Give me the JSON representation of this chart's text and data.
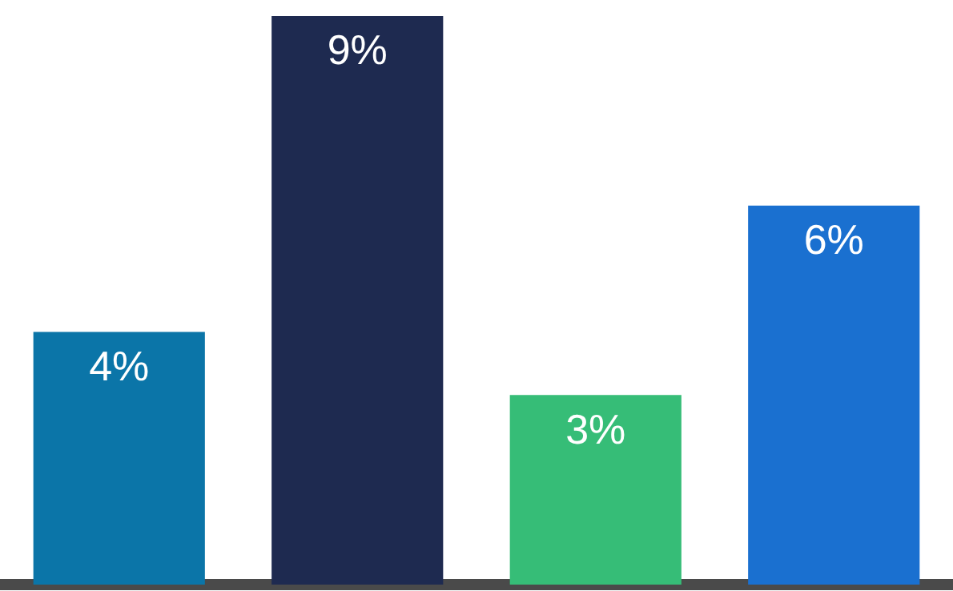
{
  "chart_data": {
    "type": "bar",
    "categories": [
      null,
      null,
      null,
      null
    ],
    "values": [
      4,
      9,
      3,
      6
    ],
    "colors": [
      "#0b75a8",
      "#1e2a50",
      "#36bd77",
      "#1a70d0"
    ],
    "data_labels": true,
    "value_labels": [
      "4%",
      "9%",
      "3%",
      "6%"
    ],
    "grid": false,
    "legend": false
  }
}
